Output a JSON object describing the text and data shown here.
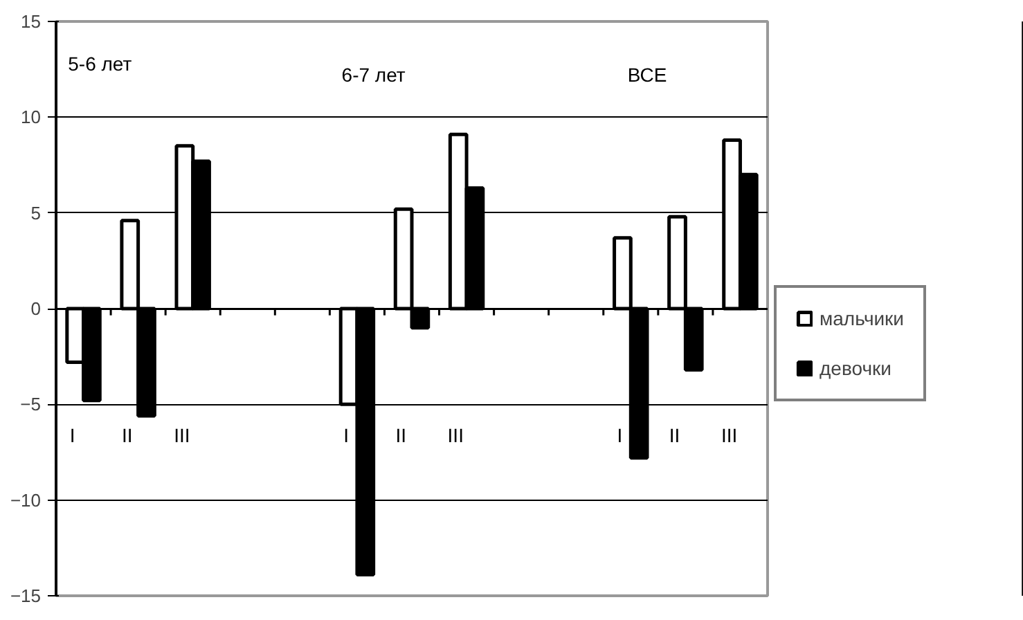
{
  "chart_data": {
    "type": "bar",
    "categories": [
      "I",
      "II",
      "III",
      null,
      null,
      "I",
      "II",
      "III",
      null,
      null,
      "I",
      "II",
      "III"
    ],
    "series": [
      {
        "name": "мальчики",
        "color": "#ffffff",
        "values": [
          -2.8,
          4.6,
          8.5,
          null,
          null,
          -5.0,
          5.2,
          9.1,
          null,
          null,
          3.7,
          4.8,
          8.8
        ]
      },
      {
        "name": "девочки",
        "color": "#000000",
        "values": [
          -4.8,
          -5.6,
          7.7,
          null,
          null,
          -13.9,
          -1.0,
          6.3,
          null,
          null,
          -7.8,
          -3.2,
          7.0
        ]
      }
    ],
    "ylim": [
      -15,
      15
    ],
    "yticks": [
      -15,
      -10,
      -5,
      0,
      5,
      10,
      15
    ],
    "grid": "y",
    "legend": "right",
    "annotations": [
      "5-6 лет",
      "6-7 лет",
      "ВСЕ"
    ]
  }
}
